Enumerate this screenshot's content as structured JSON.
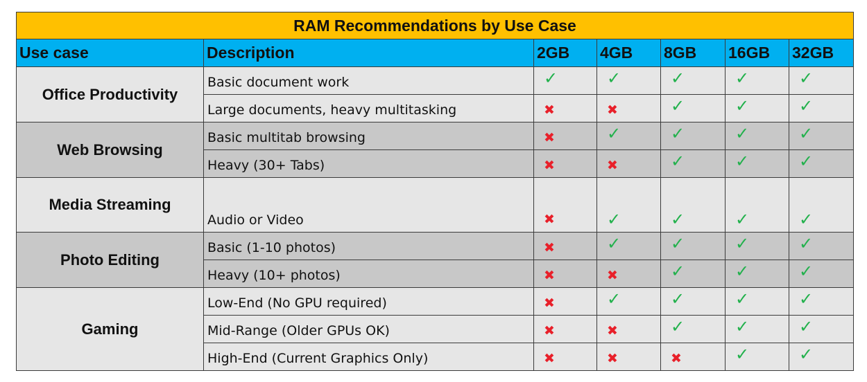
{
  "title": "RAM Recommendations by Use Case",
  "headers": [
    "Use case",
    "Description",
    "2GB",
    "4GB",
    "8GB",
    "16GB",
    "32GB"
  ],
  "symbols": {
    "yes": "✓",
    "no": "✖"
  },
  "colors": {
    "title_bg": "#ffc000",
    "header_bg": "#00b0f0",
    "check": "#22b14c",
    "cross": "#e8202a",
    "row_light": "#e6e6e6",
    "row_dark": "#c8c8c8"
  },
  "groups": [
    {
      "use_case": "Office Productivity",
      "rows": [
        {
          "description": "Basic document work",
          "marks": [
            true,
            true,
            true,
            true,
            true
          ]
        },
        {
          "description": "Large documents, heavy multitasking",
          "marks": [
            false,
            false,
            true,
            true,
            true
          ]
        }
      ]
    },
    {
      "use_case": "Web Browsing",
      "rows": [
        {
          "description": "Basic multitab browsing",
          "marks": [
            false,
            true,
            true,
            true,
            true
          ]
        },
        {
          "description": "Heavy (30+ Tabs)",
          "marks": [
            false,
            false,
            true,
            true,
            true
          ]
        }
      ]
    },
    {
      "use_case": "Media Streaming",
      "rows": [
        {
          "description": "Audio or Video",
          "marks": [
            false,
            true,
            true,
            true,
            true
          ]
        }
      ]
    },
    {
      "use_case": "Photo Editing",
      "rows": [
        {
          "description": "Basic (1-10 photos)",
          "marks": [
            false,
            true,
            true,
            true,
            true
          ]
        },
        {
          "description": "Heavy (10+ photos)",
          "marks": [
            false,
            false,
            true,
            true,
            true
          ]
        }
      ]
    },
    {
      "use_case": "Gaming",
      "rows": [
        {
          "description": "Low-End (No GPU required)",
          "marks": [
            false,
            true,
            true,
            true,
            true
          ]
        },
        {
          "description": "Mid-Range (Older GPUs OK)",
          "marks": [
            false,
            false,
            true,
            true,
            true
          ]
        },
        {
          "description": "High-End (Current Graphics Only)",
          "marks": [
            false,
            false,
            false,
            true,
            true
          ]
        }
      ]
    }
  ]
}
